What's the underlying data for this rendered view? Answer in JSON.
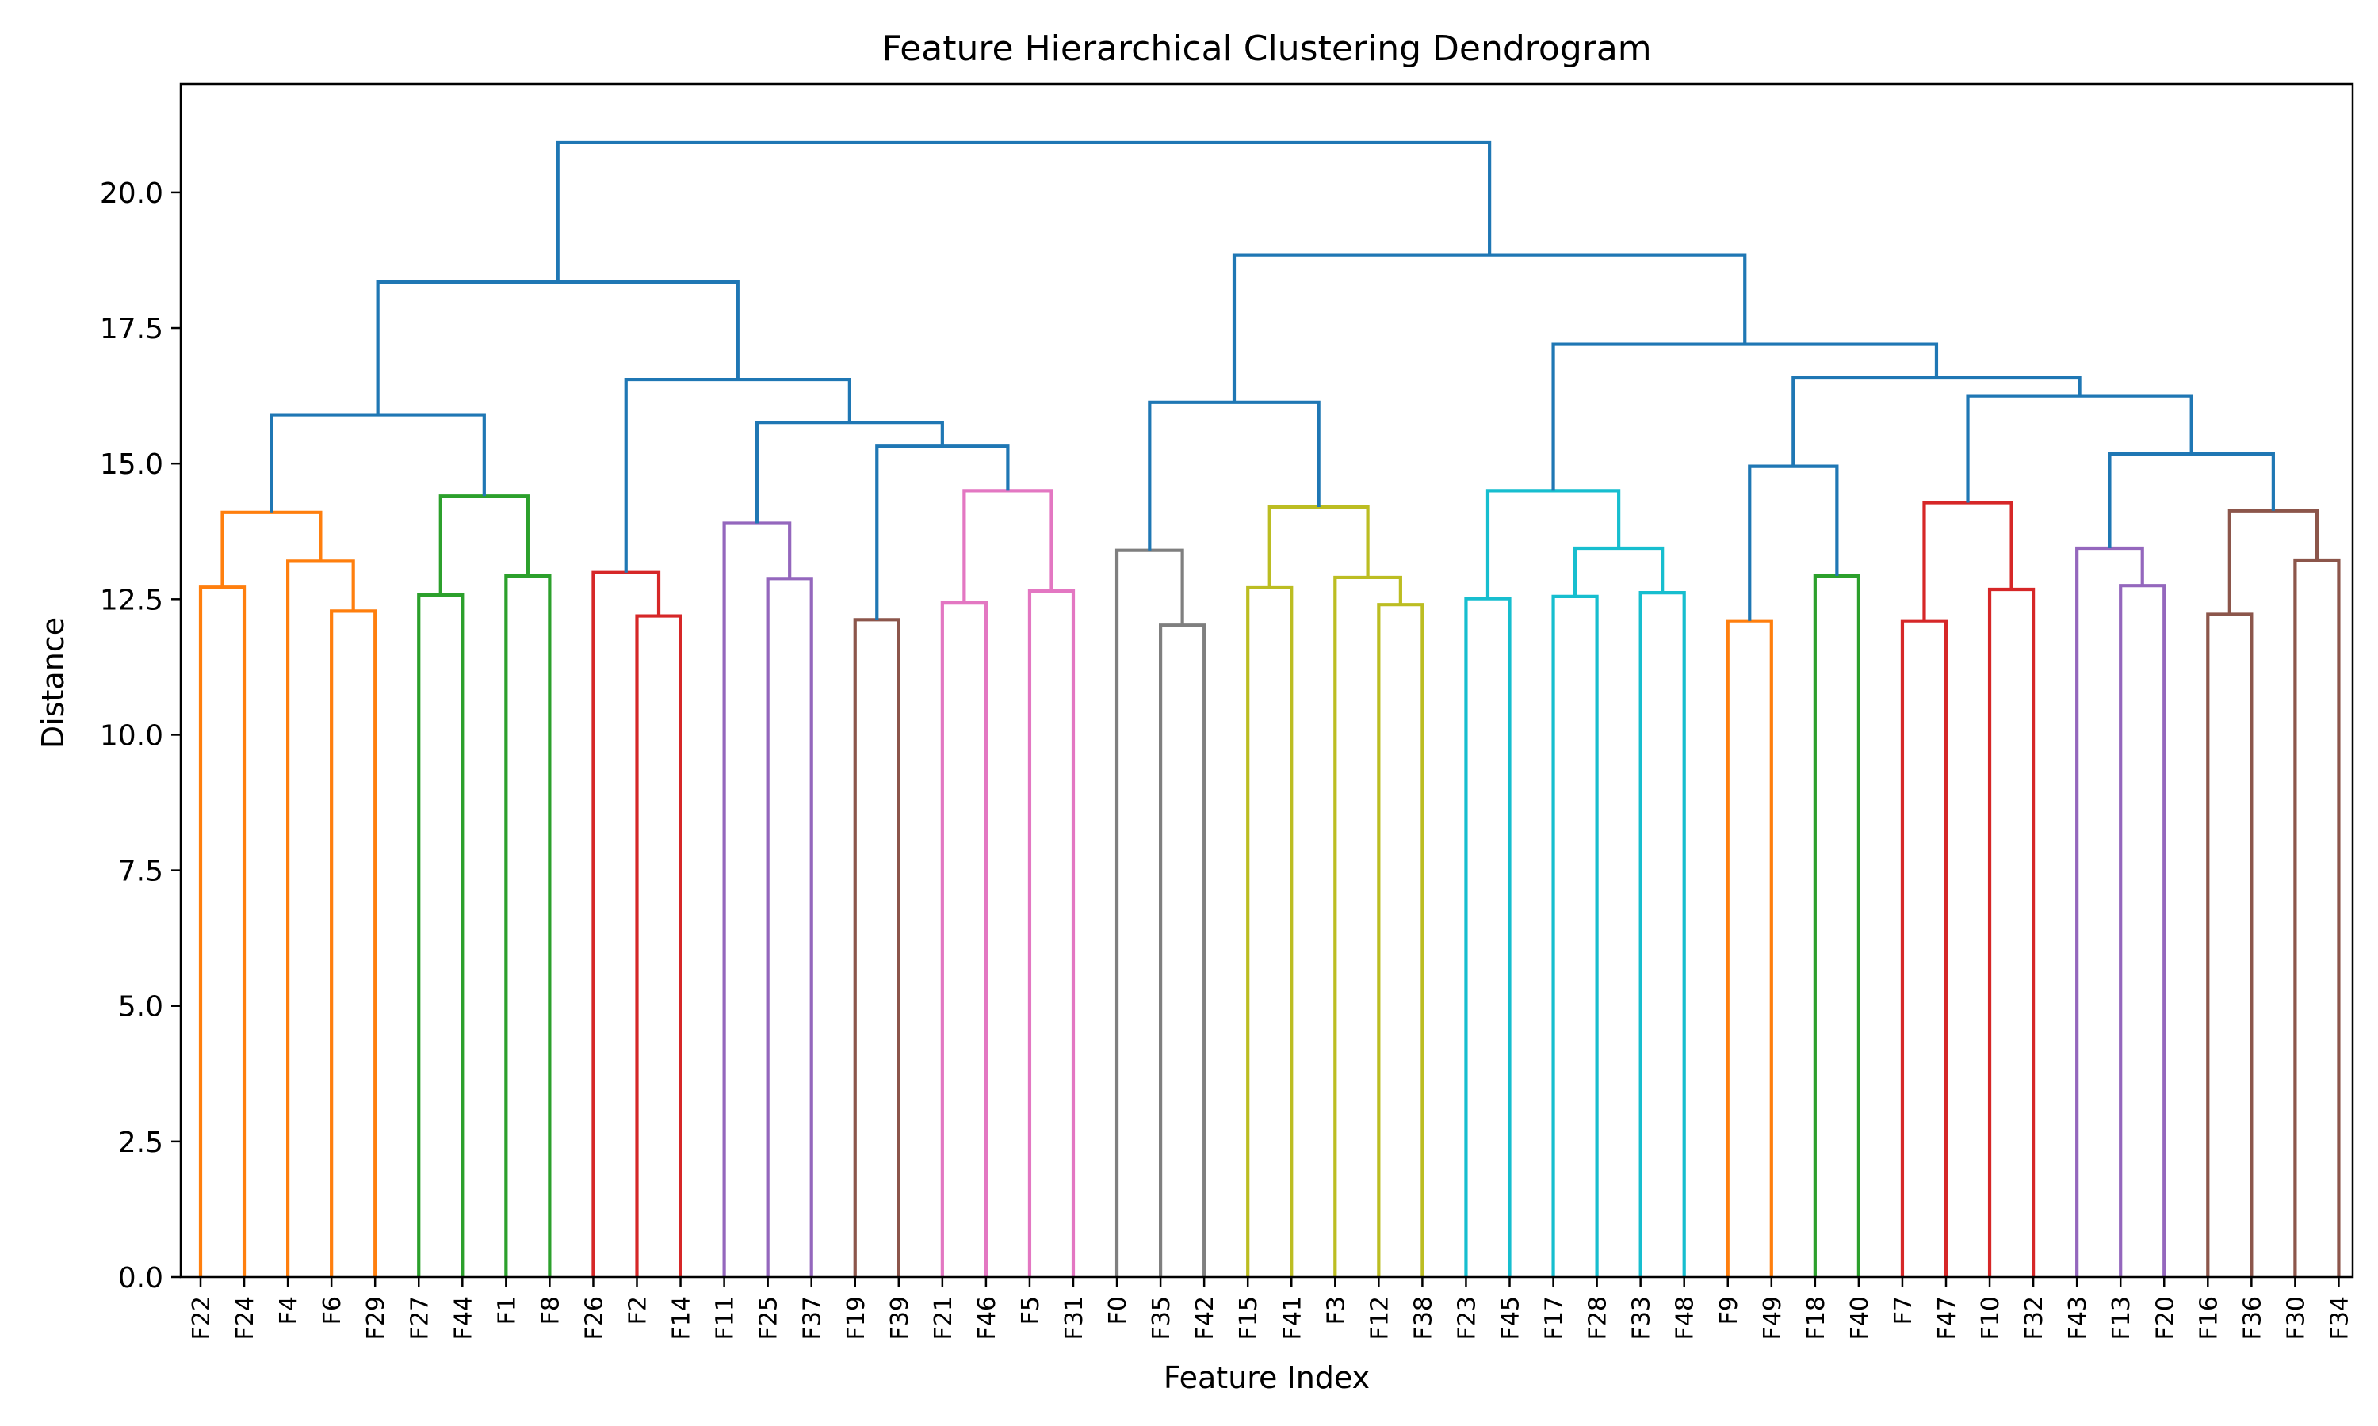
{
  "chart_data": {
    "type": "dendrogram",
    "title": "Feature Hierarchical Clustering Dendrogram",
    "xlabel": "Feature Index",
    "ylabel": "Distance",
    "ylim": [
      0,
      22
    ],
    "yticks": [
      0.0,
      2.5,
      5.0,
      7.5,
      10.0,
      12.5,
      15.0,
      17.5,
      20.0
    ],
    "grid": false,
    "leaves": [
      "F22",
      "F24",
      "F4",
      "F6",
      "F29",
      "F27",
      "F44",
      "F1",
      "F8",
      "F26",
      "F2",
      "F14",
      "F11",
      "F25",
      "F37",
      "F19",
      "F39",
      "F21",
      "F46",
      "F5",
      "F31",
      "F0",
      "F35",
      "F42",
      "F15",
      "F41",
      "F3",
      "F12",
      "F38",
      "F23",
      "F45",
      "F17",
      "F28",
      "F33",
      "F48",
      "F9",
      "F49",
      "F18",
      "F40",
      "F7",
      "F47",
      "F10",
      "F32",
      "F43",
      "F13",
      "F20",
      "F16",
      "F36",
      "F30",
      "F34"
    ],
    "colors": {
      "orange": "#ff7f0e",
      "green": "#2ca02c",
      "red": "#d62728",
      "purple": "#9467bd",
      "brown": "#8c564b",
      "pink": "#e377c2",
      "gray": "#7f7f7f",
      "olive": "#bcbd22",
      "cyan": "#17becf",
      "blue": "#1f77b4"
    },
    "merges": [
      {
        "id": "a1",
        "left": "F22",
        "right": "F24",
        "height": 12.72,
        "color": "orange"
      },
      {
        "id": "a2",
        "left": "F6",
        "right": "F29",
        "height": 12.28,
        "color": "orange"
      },
      {
        "id": "a3",
        "left": "F4",
        "right": "a2",
        "height": 13.2,
        "color": "orange"
      },
      {
        "id": "a4",
        "left": "a1",
        "right": "a3",
        "height": 14.1,
        "color": "orange"
      },
      {
        "id": "b1",
        "left": "F27",
        "right": "F44",
        "height": 12.58,
        "color": "green"
      },
      {
        "id": "b2",
        "left": "F1",
        "right": "F8",
        "height": 12.93,
        "color": "green"
      },
      {
        "id": "b3",
        "left": "b1",
        "right": "b2",
        "height": 14.4,
        "color": "green"
      },
      {
        "id": "c1",
        "left": "F2",
        "right": "F14",
        "height": 12.19,
        "color": "red"
      },
      {
        "id": "c2",
        "left": "F26",
        "right": "c1",
        "height": 12.99,
        "color": "red"
      },
      {
        "id": "d1",
        "left": "F25",
        "right": "F37",
        "height": 12.88,
        "color": "purple"
      },
      {
        "id": "d2",
        "left": "F11",
        "right": "d1",
        "height": 13.9,
        "color": "purple"
      },
      {
        "id": "e1",
        "left": "F19",
        "right": "F39",
        "height": 12.12,
        "color": "brown"
      },
      {
        "id": "f1",
        "left": "F21",
        "right": "F46",
        "height": 12.43,
        "color": "pink"
      },
      {
        "id": "f2",
        "left": "F5",
        "right": "F31",
        "height": 12.65,
        "color": "pink"
      },
      {
        "id": "f3",
        "left": "f1",
        "right": "f2",
        "height": 14.5,
        "color": "pink"
      },
      {
        "id": "g1",
        "left": "F35",
        "right": "F42",
        "height": 12.02,
        "color": "gray"
      },
      {
        "id": "g2",
        "left": "F0",
        "right": "g1",
        "height": 13.4,
        "color": "gray"
      },
      {
        "id": "h1",
        "left": "F15",
        "right": "F41",
        "height": 12.71,
        "color": "olive"
      },
      {
        "id": "h2",
        "left": "F12",
        "right": "F38",
        "height": 12.4,
        "color": "olive"
      },
      {
        "id": "h3",
        "left": "F3",
        "right": "h2",
        "height": 12.9,
        "color": "olive"
      },
      {
        "id": "h4",
        "left": "h1",
        "right": "h3",
        "height": 14.2,
        "color": "olive"
      },
      {
        "id": "i1",
        "left": "F23",
        "right": "F45",
        "height": 12.51,
        "color": "cyan"
      },
      {
        "id": "i2",
        "left": "F17",
        "right": "F28",
        "height": 12.55,
        "color": "cyan"
      },
      {
        "id": "i3",
        "left": "F33",
        "right": "F48",
        "height": 12.62,
        "color": "cyan"
      },
      {
        "id": "i4",
        "left": "i2",
        "right": "i3",
        "height": 13.44,
        "color": "cyan"
      },
      {
        "id": "i5",
        "left": "i1",
        "right": "i4",
        "height": 14.5,
        "color": "cyan"
      },
      {
        "id": "j1",
        "left": "F9",
        "right": "F49",
        "height": 12.1,
        "color": "orange"
      },
      {
        "id": "k1",
        "left": "F18",
        "right": "F40",
        "height": 12.93,
        "color": "green"
      },
      {
        "id": "l1",
        "left": "F7",
        "right": "F47",
        "height": 12.1,
        "color": "red"
      },
      {
        "id": "l2",
        "left": "F10",
        "right": "F32",
        "height": 12.68,
        "color": "red"
      },
      {
        "id": "l3",
        "left": "l1",
        "right": "l2",
        "height": 14.28,
        "color": "red"
      },
      {
        "id": "m1",
        "left": "F13",
        "right": "F20",
        "height": 12.75,
        "color": "purple"
      },
      {
        "id": "m2",
        "left": "F43",
        "right": "m1",
        "height": 13.44,
        "color": "purple"
      },
      {
        "id": "n1",
        "left": "F16",
        "right": "F36",
        "height": 12.22,
        "color": "brown"
      },
      {
        "id": "n2",
        "left": "F30",
        "right": "F34",
        "height": 13.22,
        "color": "brown"
      },
      {
        "id": "n3",
        "left": "n1",
        "right": "n2",
        "height": 14.13,
        "color": "brown"
      },
      {
        "id": "U1",
        "left": "a4",
        "right": "b3",
        "height": 15.9,
        "color": "blue"
      },
      {
        "id": "U2",
        "left": "e1",
        "right": "f3",
        "height": 15.32,
        "color": "blue"
      },
      {
        "id": "U3",
        "left": "d2",
        "right": "U2",
        "height": 15.76,
        "color": "blue"
      },
      {
        "id": "U4",
        "left": "c2",
        "right": "U3",
        "height": 16.55,
        "color": "blue"
      },
      {
        "id": "U5",
        "left": "U1",
        "right": "U4",
        "height": 18.35,
        "color": "blue"
      },
      {
        "id": "U6",
        "left": "g2",
        "right": "h4",
        "height": 16.13,
        "color": "blue"
      },
      {
        "id": "U7",
        "left": "j1",
        "right": "k1",
        "height": 14.95,
        "color": "blue"
      },
      {
        "id": "U8",
        "left": "m2",
        "right": "n3",
        "height": 15.18,
        "color": "blue"
      },
      {
        "id": "U9",
        "left": "l3",
        "right": "U8",
        "height": 16.25,
        "color": "blue"
      },
      {
        "id": "U10",
        "left": "U7",
        "right": "U9",
        "height": 16.58,
        "color": "blue"
      },
      {
        "id": "U11",
        "left": "i5",
        "right": "U10",
        "height": 17.2,
        "color": "blue"
      },
      {
        "id": "U12",
        "left": "U6",
        "right": "U11",
        "height": 18.85,
        "color": "blue"
      },
      {
        "id": "U13",
        "left": "U5",
        "right": "U12",
        "height": 20.92,
        "color": "blue"
      }
    ]
  }
}
